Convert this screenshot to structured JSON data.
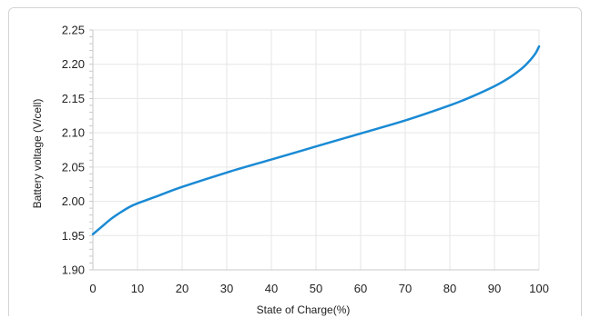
{
  "chart_data": {
    "type": "line",
    "title": "",
    "xlabel": "State of Charge(%)",
    "ylabel": "Battery voltage (V/cell)",
    "xlim": [
      0,
      100
    ],
    "ylim": [
      1.9,
      2.25
    ],
    "x_ticks": [
      "0",
      "10",
      "20",
      "30",
      "40",
      "50",
      "60",
      "70",
      "80",
      "90",
      "100"
    ],
    "y_ticks": [
      "2.25",
      "2.20",
      "2.15",
      "2.10",
      "2.05",
      "2.00",
      "1.95",
      "1.90"
    ],
    "grid": true,
    "line_color": "#1a8ad4",
    "series": [
      {
        "x": [
          0,
          2,
          4,
          6,
          8,
          10,
          15,
          20,
          30,
          40,
          50,
          60,
          70,
          80,
          85,
          90,
          93,
          95,
          97,
          99,
          100
        ],
        "y": [
          1.952,
          1.963,
          1.974,
          1.983,
          1.991,
          1.997,
          2.009,
          2.021,
          2.042,
          2.061,
          2.08,
          2.099,
          2.118,
          2.14,
          2.153,
          2.168,
          2.179,
          2.188,
          2.199,
          2.214,
          2.226
        ]
      }
    ]
  }
}
